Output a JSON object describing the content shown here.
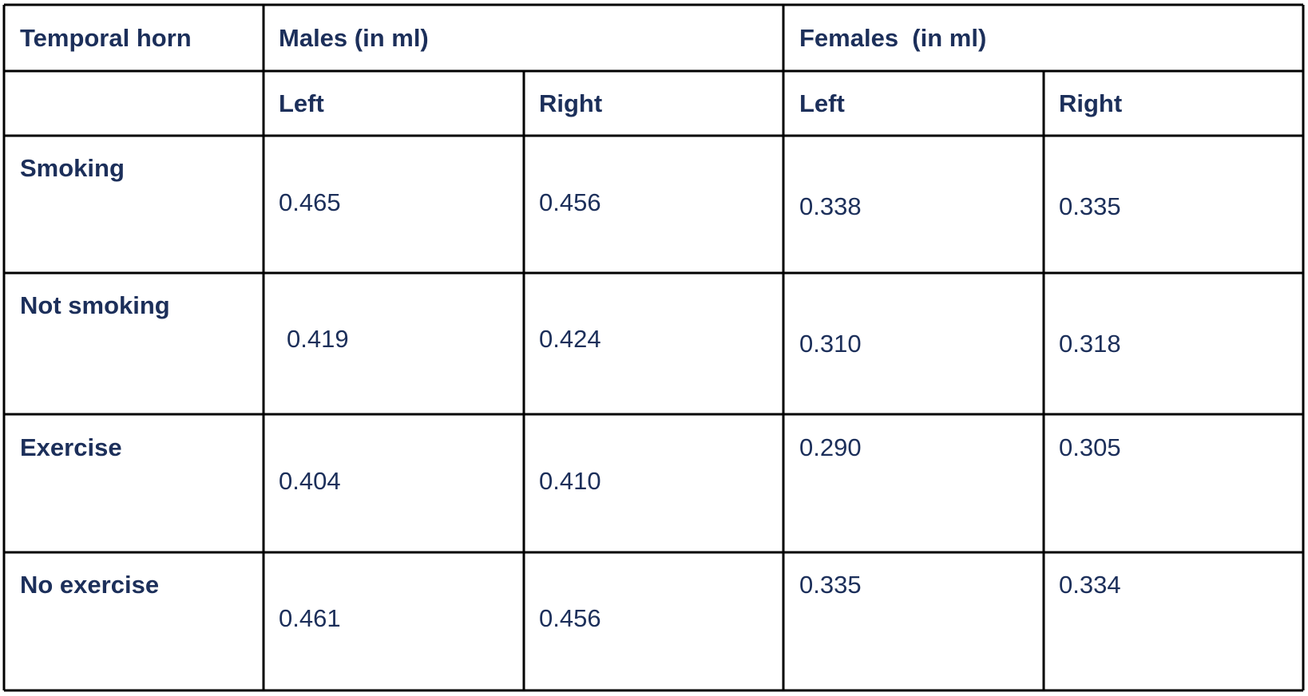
{
  "table": {
    "header": [
      "Temporal horn",
      "Males (in ml)",
      "Females  (in ml)"
    ],
    "subheader": [
      "Left",
      "Right",
      "Left",
      "Right"
    ],
    "rows": [
      {
        "label": "Smoking",
        "values": [
          "0.465",
          "0.456",
          "0.338",
          "0.335"
        ]
      },
      {
        "label": "Not smoking",
        "values": [
          "0.419",
          "0.424",
          "0.310",
          "0.318"
        ]
      },
      {
        "label": "Exercise",
        "values": [
          "0.404",
          "0.410",
          "0.290",
          "0.305"
        ]
      },
      {
        "label": "No exercise",
        "values": [
          "0.461",
          "0.456",
          "0.335",
          "0.334"
        ]
      }
    ]
  }
}
